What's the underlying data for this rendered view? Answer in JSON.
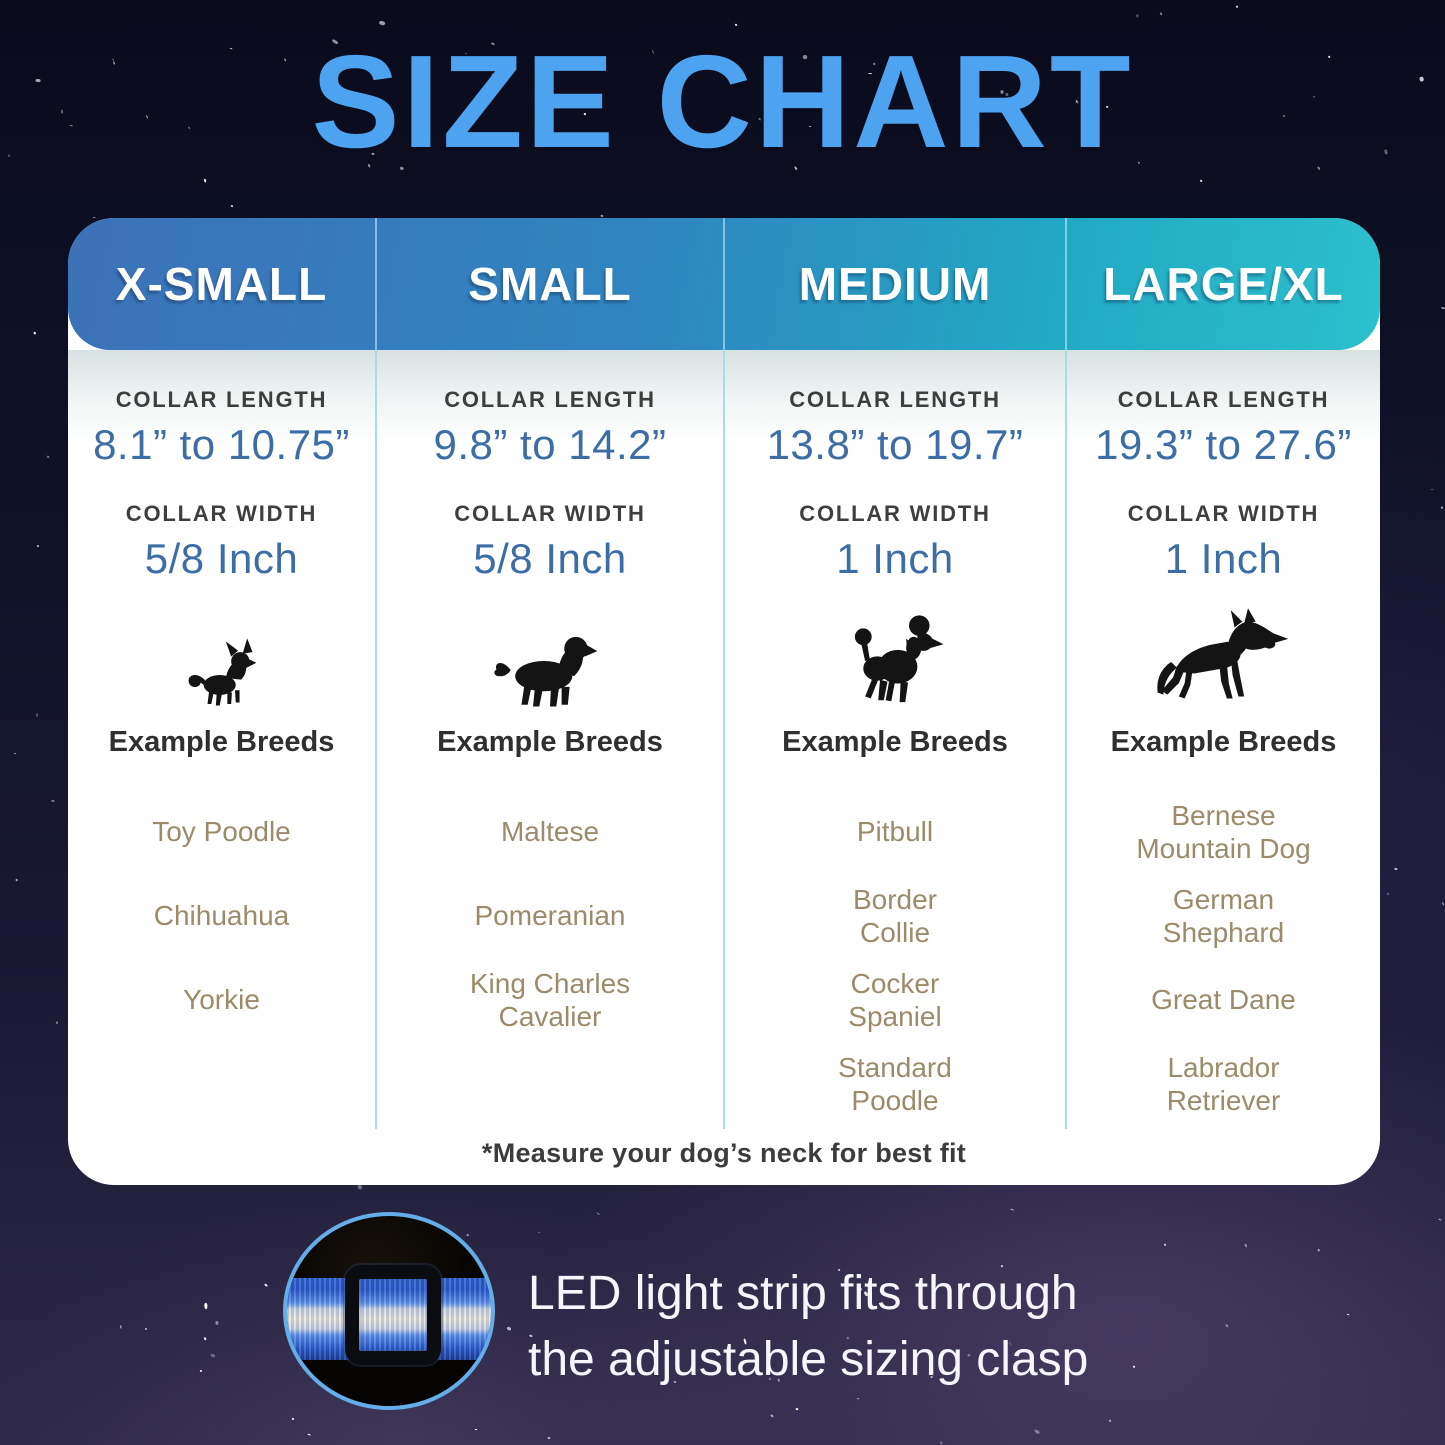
{
  "title": "SIZE CHART",
  "table": {
    "columns": [
      {
        "size": "X-SMALL",
        "length_label": "COLLAR LENGTH",
        "length": "8.1” to 10.75”",
        "width_label": "COLLAR WIDTH",
        "width": "5/8 Inch",
        "icon": "chihuahua-icon",
        "breeds_heading": "Example Breeds",
        "breeds": [
          "Toy Poodle",
          "Chihuahua",
          "Yorkie"
        ]
      },
      {
        "size": "SMALL",
        "length_label": "COLLAR LENGTH",
        "length": "9.8” to 14.2”",
        "width_label": "COLLAR WIDTH",
        "width": "5/8 Inch",
        "icon": "cavalier-spaniel-icon",
        "breeds_heading": "Example Breeds",
        "breeds": [
          "Maltese",
          "Pomeranian",
          "King Charles Cavalier"
        ]
      },
      {
        "size": "MEDIUM",
        "length_label": "COLLAR LENGTH",
        "length": "13.8” to 19.7”",
        "width_label": "COLLAR WIDTH",
        "width": "1 Inch",
        "icon": "poodle-icon",
        "breeds_heading": "Example Breeds",
        "breeds": [
          "Pitbull",
          "Border Collie",
          "Cocker Spaniel",
          "Standard Poodle"
        ]
      },
      {
        "size": "LARGE/XL",
        "length_label": "COLLAR LENGTH",
        "length": "19.3” to 27.6”",
        "width_label": "COLLAR WIDTH",
        "width": "1 Inch",
        "icon": "german-shepherd-icon",
        "breeds_heading": "Example Breeds",
        "breeds": [
          "Bernese Mountain Dog",
          "German Shephard",
          "Great Dane",
          "Labrador Retriever"
        ]
      }
    ],
    "footnote": "*Measure your dog’s neck for best fit"
  },
  "callout": {
    "line1": "LED light strip fits through",
    "line2": "the adjustable sizing clasp",
    "image": "led-collar-clasp-closeup"
  },
  "colors": {
    "title_blue": "#4da3f0",
    "header_gradient_left": "#3d71b8",
    "header_gradient_right": "#2cc0cc",
    "value_blue": "#3d6da6",
    "breed_tan": "#9c8b6b",
    "divider_blue": "#abdbea",
    "circle_ring_blue": "#63ade8",
    "background_navy": "#0b0d1e",
    "background_purple": "#2e2947"
  }
}
